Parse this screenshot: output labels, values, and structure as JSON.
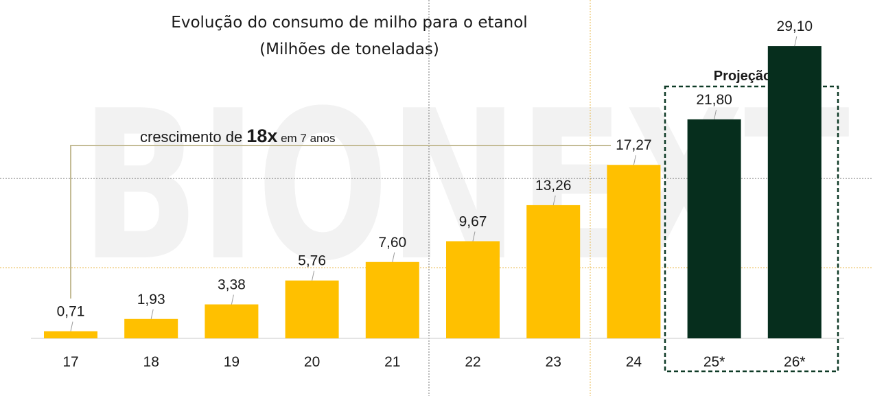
{
  "chart_data": {
    "type": "bar",
    "title": "Evolução do consumo de milho para o etanol",
    "subtitle": "(Milhões de toneladas)",
    "categories": [
      "17",
      "18",
      "19",
      "20",
      "21",
      "22",
      "23",
      "24",
      "25*",
      "26*"
    ],
    "values": [
      0.71,
      1.93,
      3.38,
      5.76,
      7.6,
      9.67,
      13.26,
      17.27,
      21.8,
      29.1
    ],
    "value_labels": [
      "0,71",
      "1,93",
      "3,38",
      "5,76",
      "7,60",
      "9,67",
      "13,26",
      "17,27",
      "21,80",
      "29,10"
    ],
    "projected": [
      false,
      false,
      false,
      false,
      false,
      false,
      false,
      false,
      true,
      true
    ],
    "ylim": [
      0,
      33
    ],
    "grid": false,
    "legend": "none"
  },
  "annotations": {
    "projection_label": "Projeção",
    "growth_prefix": "crescimento de ",
    "growth_multiplier": "18x",
    "growth_suffix": " em 7 anos"
  },
  "watermark": "BIONEXT",
  "colors": {
    "actual_bar": "#FFC000",
    "projected_bar": "#062E1D",
    "bracket_line": "#C4BC96",
    "watermark": "#F2F2F2",
    "projection_box": "#0E3A26",
    "guide_dotted": "#E8B84C",
    "guide_gray": "#777777",
    "axis": "#C8C8C8",
    "text": "#1A1A1A"
  }
}
